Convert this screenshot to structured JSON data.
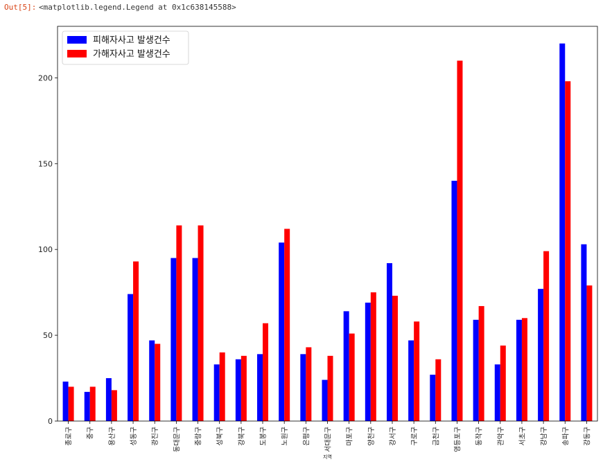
{
  "cell": {
    "prompt": "Out[5]:",
    "output": "<matplotlib.legend.Legend at 0x1c638145588>"
  },
  "chart_data": {
    "type": "bar",
    "xlabel": "지역",
    "ylabel": "",
    "title": "",
    "ylim": [
      0,
      230
    ],
    "yticks": [
      0,
      50,
      100,
      150,
      200
    ],
    "legend_position": "top-left",
    "grid": false,
    "categories": [
      "종로구",
      "중구",
      "용산구",
      "성동구",
      "광진구",
      "동대문구",
      "중랑구",
      "성북구",
      "강북구",
      "도봉구",
      "노원구",
      "은평구",
      "서대문구",
      "마포구",
      "양천구",
      "강서구",
      "구로구",
      "금천구",
      "영등포구",
      "동작구",
      "관악구",
      "서초구",
      "강남구",
      "송파구",
      "강동구"
    ],
    "series": [
      {
        "name": "피해자사고 발생건수",
        "color": "#0000ff",
        "values": [
          23,
          17,
          25,
          74,
          47,
          95,
          95,
          33,
          36,
          39,
          104,
          39,
          24,
          64,
          69,
          92,
          47,
          27,
          140,
          59,
          33,
          59,
          77,
          220,
          103
        ]
      },
      {
        "name": "가해자사고 발생건수",
        "color": "#ff0000",
        "values": [
          20,
          20,
          18,
          93,
          45,
          114,
          114,
          40,
          38,
          57,
          112,
          43,
          38,
          51,
          75,
          73,
          58,
          36,
          210,
          67,
          44,
          60,
          99,
          198,
          79
        ]
      }
    ]
  }
}
